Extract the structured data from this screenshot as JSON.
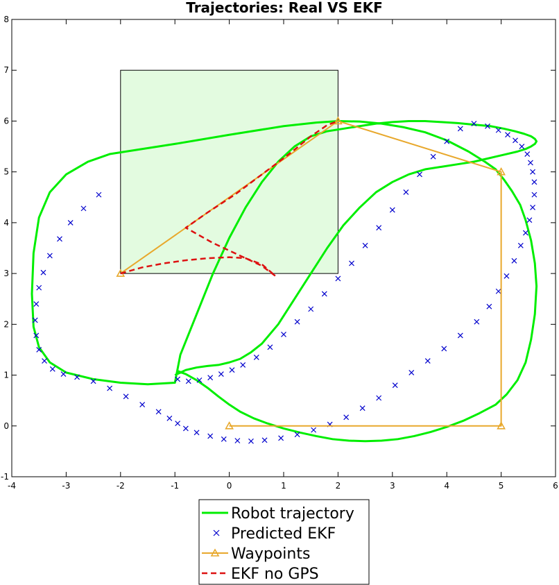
{
  "chart_data": {
    "type": "line",
    "title": "Trajectories: Real VS EKF",
    "xlabel": "",
    "ylabel": "",
    "xlim": [
      -4,
      6
    ],
    "ylim": [
      -1,
      8
    ],
    "xticks": [
      "-4",
      "-3",
      "-2",
      "-1",
      "0",
      "1",
      "2",
      "3",
      "4",
      "5",
      "6"
    ],
    "yticks": [
      "-1",
      "0",
      "1",
      "2",
      "3",
      "4",
      "5",
      "6",
      "7",
      "8"
    ],
    "grid": false,
    "legend_location": "bottom-center-outside",
    "region": {
      "x": [
        -2,
        2
      ],
      "y": [
        3,
        7
      ],
      "fill": "#e3fbe0"
    },
    "colors": {
      "robot": "#00ee00",
      "ekf": "#0000cc",
      "waypoints": "#e8a82c",
      "nogps": "#dd1111"
    },
    "series": [
      {
        "name": "Robot trajectory",
        "style": "solid",
        "x": [
          -1.0,
          -0.8,
          -0.6,
          -0.4,
          -0.2,
          0.0,
          0.2,
          0.4,
          0.6,
          0.9,
          1.2,
          1.5,
          1.8,
          2.1,
          2.4,
          2.7,
          3.0,
          3.3,
          3.6,
          3.9,
          4.2,
          4.5,
          4.7,
          4.9,
          5.1,
          5.3,
          5.45,
          5.55,
          5.62,
          5.65,
          5.62,
          5.55,
          5.42,
          5.25,
          5.05,
          4.8,
          4.5,
          4.2,
          3.9,
          3.6,
          3.3,
          3.0,
          2.7,
          2.4,
          2.1,
          1.8,
          1.5,
          1.2,
          0.9,
          0.6,
          0.3,
          0.0,
          -0.3,
          -0.6,
          -0.9,
          -1.0,
          -1.5,
          -2.0,
          -2.5,
          -3.0,
          -3.3,
          -3.5,
          -3.6,
          -3.63,
          -3.6,
          -3.5,
          -3.3,
          -3.0,
          -2.6,
          -2.2,
          -1.0,
          0.0,
          1.0,
          1.6,
          2.0,
          2.4,
          2.8,
          3.2,
          3.6,
          4.0,
          4.4,
          4.7,
          4.9,
          5.05,
          5.2,
          5.35,
          5.45,
          5.55,
          5.62,
          5.65,
          5.62,
          5.55,
          5.45,
          5.3,
          5.1,
          4.9,
          4.6,
          4.3,
          4.0,
          3.7,
          3.4,
          3.1,
          2.8,
          2.5,
          2.2,
          1.9,
          1.6,
          1.3,
          1.0,
          0.7,
          0.45,
          0.2,
          0.0,
          -0.2,
          -0.4,
          -0.6,
          -0.8,
          -0.95
        ],
        "y": [
          1.0,
          1.1,
          1.15,
          1.18,
          1.2,
          1.25,
          1.32,
          1.45,
          1.62,
          2.0,
          2.5,
          3.0,
          3.5,
          3.95,
          4.3,
          4.6,
          4.8,
          4.95,
          5.05,
          5.1,
          5.15,
          5.2,
          5.25,
          5.3,
          5.35,
          5.4,
          5.45,
          5.5,
          5.55,
          5.6,
          5.65,
          5.7,
          5.75,
          5.8,
          5.85,
          5.9,
          5.93,
          5.96,
          5.98,
          6.0,
          6.0,
          5.98,
          5.95,
          5.9,
          5.85,
          5.8,
          5.7,
          5.5,
          5.2,
          4.8,
          4.3,
          3.7,
          3.0,
          2.2,
          1.4,
          0.85,
          0.82,
          0.85,
          0.92,
          1.05,
          1.25,
          1.55,
          1.95,
          2.6,
          3.4,
          4.1,
          4.6,
          4.95,
          5.2,
          5.35,
          5.55,
          5.73,
          5.9,
          5.97,
          6.0,
          5.99,
          5.95,
          5.88,
          5.78,
          5.62,
          5.4,
          5.2,
          5.05,
          4.85,
          4.62,
          4.35,
          4.05,
          3.65,
          3.2,
          2.75,
          2.2,
          1.7,
          1.25,
          0.9,
          0.62,
          0.42,
          0.25,
          0.1,
          -0.02,
          -0.12,
          -0.2,
          -0.26,
          -0.29,
          -0.3,
          -0.29,
          -0.26,
          -0.2,
          -0.13,
          -0.05,
          0.05,
          0.15,
          0.28,
          0.42,
          0.58,
          0.75,
          0.9,
          1.02,
          1.08
        ]
      },
      {
        "name": "Predicted EKF",
        "style": "markers-x",
        "x": [
          -0.95,
          -0.75,
          -0.55,
          -0.35,
          -0.15,
          0.05,
          0.25,
          0.5,
          0.75,
          1.0,
          1.25,
          1.5,
          1.75,
          2.0,
          2.25,
          2.5,
          2.75,
          3.0,
          3.25,
          3.5,
          3.75,
          4.0,
          4.25,
          4.5,
          4.75,
          4.95,
          5.12,
          5.26,
          5.38,
          5.48,
          5.54,
          5.58,
          5.61,
          5.61,
          5.58,
          5.52,
          5.45,
          5.36,
          5.24,
          5.1,
          4.95,
          4.78,
          4.55,
          4.25,
          3.95,
          3.65,
          3.35,
          3.05,
          2.75,
          2.45,
          2.15,
          1.85,
          1.55,
          1.25,
          0.95,
          0.65,
          0.4,
          0.15,
          -0.1,
          -0.35,
          -0.6,
          -0.8,
          -0.95,
          -1.1,
          -1.3,
          -1.6,
          -1.9,
          -2.2,
          -2.5,
          -2.8,
          -3.05,
          -3.25,
          -3.4,
          -3.5,
          -3.55,
          -3.57,
          -3.55,
          -3.5,
          -3.42,
          -3.3,
          -3.12,
          -2.92,
          -2.68,
          -2.4
        ],
        "y": [
          0.92,
          0.88,
          0.9,
          0.95,
          1.02,
          1.1,
          1.2,
          1.35,
          1.55,
          1.8,
          2.05,
          2.3,
          2.6,
          2.9,
          3.2,
          3.55,
          3.9,
          4.25,
          4.6,
          4.95,
          5.3,
          5.6,
          5.85,
          5.95,
          5.9,
          5.82,
          5.73,
          5.62,
          5.5,
          5.35,
          5.18,
          5.0,
          4.8,
          4.55,
          4.3,
          4.05,
          3.8,
          3.55,
          3.25,
          2.95,
          2.65,
          2.35,
          2.05,
          1.78,
          1.52,
          1.28,
          1.05,
          0.8,
          0.55,
          0.35,
          0.17,
          0.03,
          -0.08,
          -0.17,
          -0.24,
          -0.28,
          -0.3,
          -0.29,
          -0.26,
          -0.2,
          -0.13,
          -0.05,
          0.05,
          0.15,
          0.28,
          0.42,
          0.58,
          0.74,
          0.88,
          0.96,
          1.02,
          1.12,
          1.28,
          1.5,
          1.78,
          2.08,
          2.4,
          2.72,
          3.02,
          3.35,
          3.68,
          4.0,
          4.28,
          4.55
        ]
      },
      {
        "name": "Waypoints",
        "style": "solid-triangle",
        "x": [
          -2,
          2,
          5,
          5,
          0
        ],
        "y": [
          3,
          6,
          5,
          0,
          0
        ]
      },
      {
        "name": "EKF no GPS",
        "style": "dashed",
        "x": [
          -2,
          -1.6,
          -1.2,
          -0.8,
          -0.4,
          0,
          0.3,
          0.6,
          0.85,
          0.6,
          0.2,
          -0.3,
          -0.8,
          -0.4,
          0.1,
          0.6,
          1.1,
          1.5,
          1.8,
          2.0
        ],
        "y": [
          3,
          3.12,
          3.2,
          3.26,
          3.3,
          3.32,
          3.3,
          3.18,
          2.95,
          3.15,
          3.35,
          3.6,
          3.9,
          4.2,
          4.55,
          4.95,
          5.35,
          5.7,
          5.92,
          6.0
        ]
      }
    ]
  }
}
